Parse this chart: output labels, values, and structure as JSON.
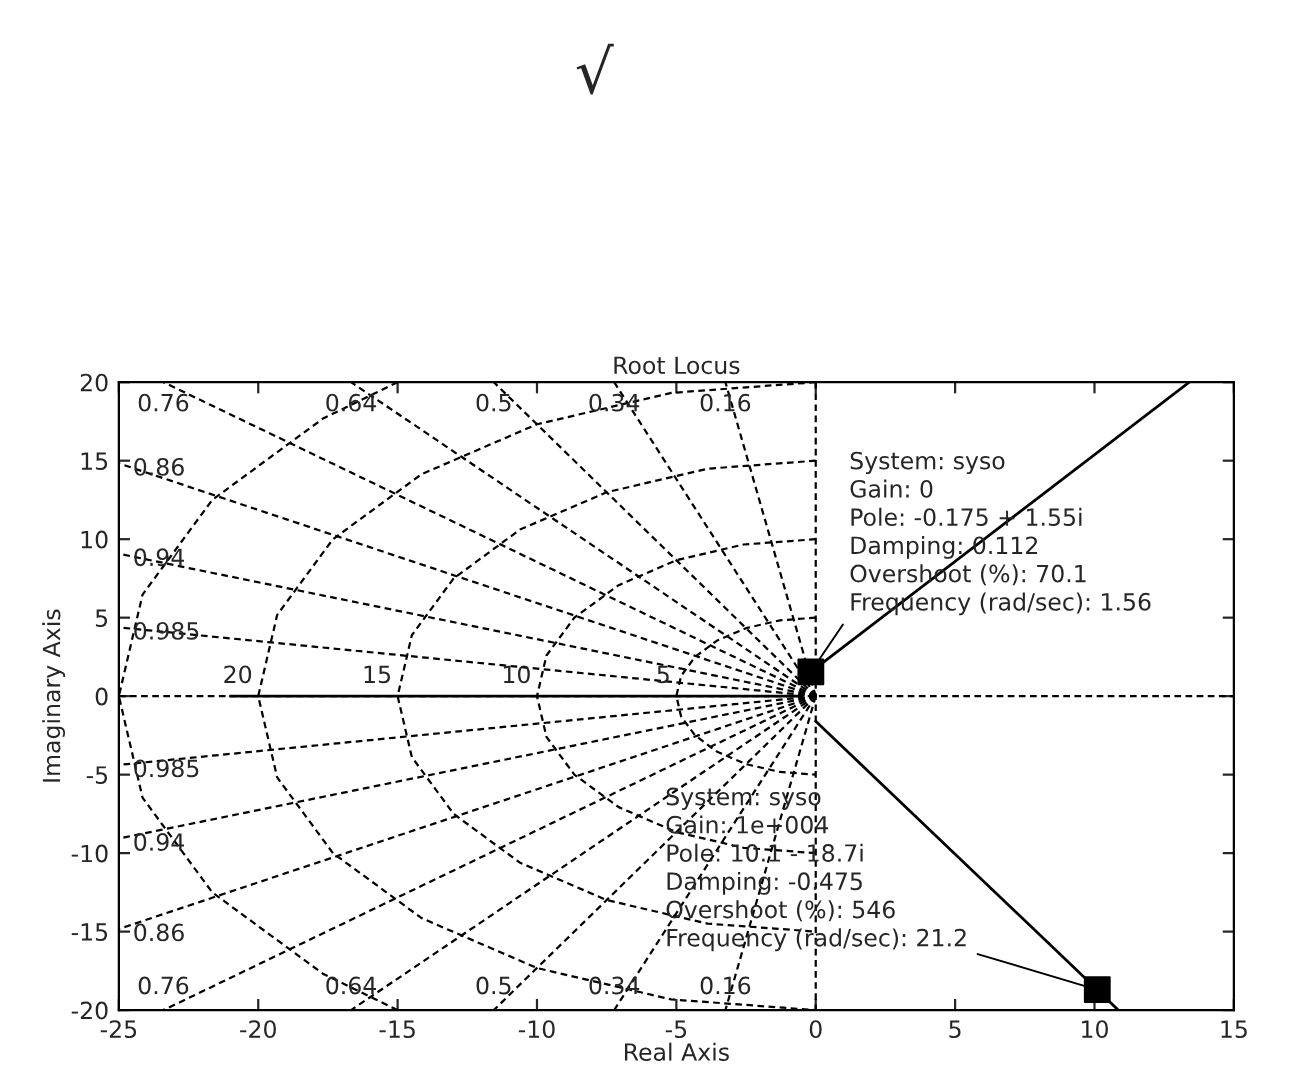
{
  "chart_data": {
    "type": "line",
    "title": "Root Locus",
    "xlabel": "Real Axis",
    "ylabel": "Imaginary Axis",
    "xlim": [
      -25,
      15
    ],
    "ylim": [
      -20,
      20
    ],
    "xticks": [
      -25,
      -20,
      -15,
      -10,
      -5,
      0,
      5,
      10,
      15
    ],
    "yticks": [
      -20,
      -15,
      -10,
      -5,
      0,
      5,
      10,
      15,
      20
    ],
    "grid": false,
    "series": [
      {
        "type": "line",
        "color": "#000000",
        "line_style": "solid",
        "x": [
          -0.175,
          13.4
        ],
        "values": [
          1.55,
          20
        ]
      },
      {
        "type": "line",
        "color": "#000000",
        "line_style": "solid",
        "x": [
          0,
          10.1,
          10.85
        ],
        "values": [
          -1.6,
          -18.7,
          -20
        ]
      },
      {
        "type": "line",
        "color": "#000000",
        "line_style": "solid",
        "x": [
          -21,
          -0.5
        ],
        "values": [
          0,
          0
        ]
      },
      {
        "type": "scatter",
        "color": "#000000",
        "marker": "square",
        "x": [
          -0.175,
          10.1
        ],
        "values": [
          1.55,
          -18.7
        ]
      },
      {
        "type": "line",
        "color": "#000000",
        "line_style": "dashed",
        "x": [
          0,
          0
        ],
        "values": [
          20,
          -20
        ]
      },
      {
        "type": "line",
        "color": "#000000",
        "line_style": "dashed",
        "x": [
          -25,
          15
        ],
        "values": [
          0,
          0
        ]
      },
      {
        "type": "line",
        "color": "#000000",
        "line_style": "dashed",
        "x": [
          0,
          -3.24
        ],
        "values": [
          0,
          20
        ]
      },
      {
        "type": "line",
        "color": "#000000",
        "line_style": "dashed",
        "x": [
          0,
          -7.23
        ],
        "values": [
          0,
          20
        ]
      },
      {
        "type": "line",
        "color": "#000000",
        "line_style": "dashed",
        "x": [
          0,
          -11.55
        ],
        "values": [
          0,
          20
        ]
      },
      {
        "type": "line",
        "color": "#000000",
        "line_style": "dashed",
        "x": [
          0,
          -16.67
        ],
        "values": [
          0,
          20
        ]
      },
      {
        "type": "line",
        "color": "#000000",
        "line_style": "dashed",
        "x": [
          0,
          -23.4
        ],
        "values": [
          0,
          20
        ]
      },
      {
        "type": "line",
        "color": "#000000",
        "line_style": "dashed",
        "x": [
          0,
          -25
        ],
        "values": [
          0,
          14.83
        ]
      },
      {
        "type": "line",
        "color": "#000000",
        "line_style": "dashed",
        "x": [
          0,
          -25
        ],
        "values": [
          0,
          9.07
        ]
      },
      {
        "type": "line",
        "color": "#000000",
        "line_style": "dashed",
        "x": [
          0,
          -25
        ],
        "values": [
          0,
          4.38
        ]
      },
      {
        "type": "line",
        "color": "#000000",
        "line_style": "dashed",
        "x": [
          0,
          -3.24
        ],
        "values": [
          0,
          -20
        ]
      },
      {
        "type": "line",
        "color": "#000000",
        "line_style": "dashed",
        "x": [
          0,
          -7.23
        ],
        "values": [
          0,
          -20
        ]
      },
      {
        "type": "line",
        "color": "#000000",
        "line_style": "dashed",
        "x": [
          0,
          -11.55
        ],
        "values": [
          0,
          -20
        ]
      },
      {
        "type": "line",
        "color": "#000000",
        "line_style": "dashed",
        "x": [
          0,
          -16.67
        ],
        "values": [
          0,
          -20
        ]
      },
      {
        "type": "line",
        "color": "#000000",
        "line_style": "dashed",
        "x": [
          0,
          -23.4
        ],
        "values": [
          0,
          -20
        ]
      },
      {
        "type": "line",
        "color": "#000000",
        "line_style": "dashed",
        "x": [
          0,
          -25
        ],
        "values": [
          0,
          -14.83
        ]
      },
      {
        "type": "line",
        "color": "#000000",
        "line_style": "dashed",
        "x": [
          0,
          -25
        ],
        "values": [
          0,
          -9.07
        ]
      },
      {
        "type": "line",
        "color": "#000000",
        "line_style": "dashed",
        "x": [
          0,
          -25
        ],
        "values": [
          0,
          -4.38
        ]
      },
      {
        "type": "line",
        "color": "#000000",
        "line_style": "dashed",
        "x": [
          0,
          -1.29,
          -2.5,
          -3.54,
          -4.33,
          -4.83,
          -5,
          -4.83,
          -4.33,
          -3.54,
          -2.5,
          -1.29,
          0
        ],
        "values": [
          5,
          4.83,
          4.33,
          3.54,
          2.5,
          1.29,
          0,
          -1.29,
          -2.5,
          -3.54,
          -4.33,
          -4.83,
          -5
        ]
      },
      {
        "type": "line",
        "color": "#000000",
        "line_style": "dashed",
        "x": [
          0,
          -2.59,
          -5,
          -7.07,
          -8.66,
          -9.66,
          -10,
          -9.66,
          -8.66,
          -7.07,
          -5,
          -2.59,
          0
        ],
        "values": [
          10,
          9.66,
          8.66,
          7.07,
          5,
          2.59,
          0,
          -2.59,
          -5,
          -7.07,
          -8.66,
          -9.66,
          -10
        ]
      },
      {
        "type": "line",
        "color": "#000000",
        "line_style": "dashed",
        "x": [
          0,
          -3.88,
          -7.5,
          -10.61,
          -12.99,
          -14.49,
          -15,
          -14.49,
          -12.99,
          -10.61,
          -7.5,
          -3.88,
          0
        ],
        "values": [
          15,
          14.49,
          12.99,
          10.61,
          7.5,
          3.88,
          0,
          -3.88,
          -7.5,
          -10.61,
          -12.99,
          -14.49,
          -15
        ]
      },
      {
        "type": "line",
        "color": "#000000",
        "line_style": "dashed",
        "x": [
          0,
          -5.18,
          -10,
          -14.14,
          -17.32,
          -19.32,
          -20,
          -19.32,
          -17.32,
          -14.14,
          -10,
          -5.18,
          0
        ],
        "values": [
          20,
          19.32,
          17.32,
          14.14,
          10,
          5.18,
          0,
          -5.18,
          -10,
          -14.14,
          -17.32,
          -19.32,
          -20
        ]
      },
      {
        "type": "line",
        "color": "#000000",
        "line_style": "dashed",
        "x": [
          -15,
          -17.68,
          -21.65,
          -24.15,
          -25,
          -24.15,
          -21.65,
          -17.68,
          -15
        ],
        "values": [
          20,
          17.68,
          12.5,
          6.47,
          0,
          -6.47,
          -12.5,
          -17.68,
          -20
        ]
      }
    ],
    "annotations": [
      "√",
      {
        "text": "System: syso\nGain: 0\nPole: -0.175 + 1.55i\nDamping: 0.112\nOvershoot (%): 70.1\nFrequency (rad/sec): 1.56",
        "x": -0.175,
        "y": 1.55
      },
      {
        "text": "System: syso\nGain: 1e+004\nPole: 10.1 - 18.7i\nDamping: -0.475\nOvershoot (%): 546\nFrequency (rad/sec): 21.2",
        "x": 10.1,
        "y": -18.7
      },
      {
        "text": "0.76",
        "x": -23.4,
        "y": 20
      },
      {
        "text": "0.64",
        "x": -16.67,
        "y": 20
      },
      {
        "text": "0.5",
        "x": -11.55,
        "y": 20
      },
      {
        "text": "0.34",
        "x": -7.23,
        "y": 20
      },
      {
        "text": "0.16",
        "x": -3.24,
        "y": 20
      },
      {
        "text": "0.86",
        "x": -25,
        "y": 14.83
      },
      {
        "text": "0.94",
        "x": -25,
        "y": 9.07
      },
      {
        "text": "0.985",
        "x": -25,
        "y": 4.38
      },
      {
        "text": "0.985",
        "x": -25,
        "y": -4.38
      },
      {
        "text": "0.94",
        "x": -25,
        "y": -9.07
      },
      {
        "text": "0.86",
        "x": -25,
        "y": -14.83
      },
      {
        "text": "0.76",
        "x": -23.4,
        "y": -20
      },
      {
        "text": "0.64",
        "x": -16.67,
        "y": -20
      },
      {
        "text": "0.5",
        "x": -11.55,
        "y": -20
      },
      {
        "text": "0.34",
        "x": -7.23,
        "y": -20
      },
      {
        "text": "0.16",
        "x": -3.24,
        "y": -20
      },
      {
        "text": "20",
        "x": -20,
        "y": 0
      },
      {
        "text": "15",
        "x": -15,
        "y": 0
      },
      {
        "text": "10",
        "x": -10,
        "y": 0
      },
      {
        "text": "5",
        "x": -5,
        "y": 0
      }
    ]
  }
}
